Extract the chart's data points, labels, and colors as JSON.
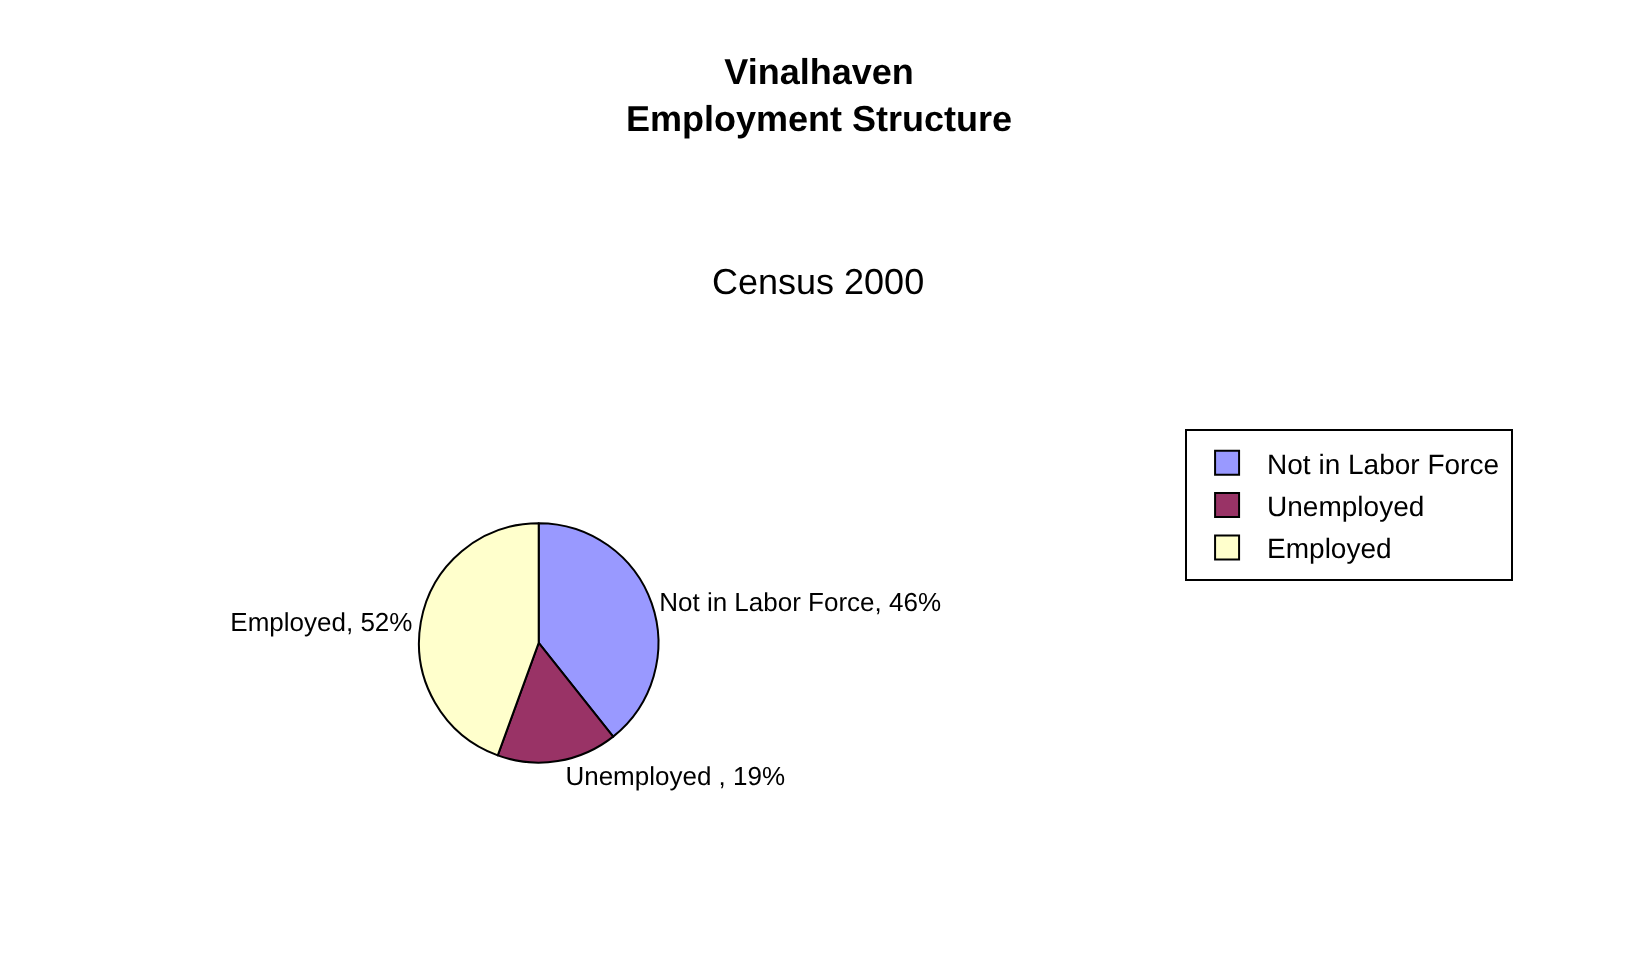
{
  "chart_data": {
    "type": "pie",
    "title": "Vinalhaven\nEmployment Structure",
    "subtitle": "Census 2000",
    "categories": [
      "Not in Labor Force",
      "Unemployed",
      "Employed"
    ],
    "values": [
      46,
      19,
      52
    ],
    "colors": [
      "#9999ff",
      "#993366",
      "#ffffcc"
    ],
    "value_labels": [
      "Not in Labor Force, 46%",
      "Unemployed , 19%",
      "Employed, 52%"
    ],
    "legend": "right"
  }
}
